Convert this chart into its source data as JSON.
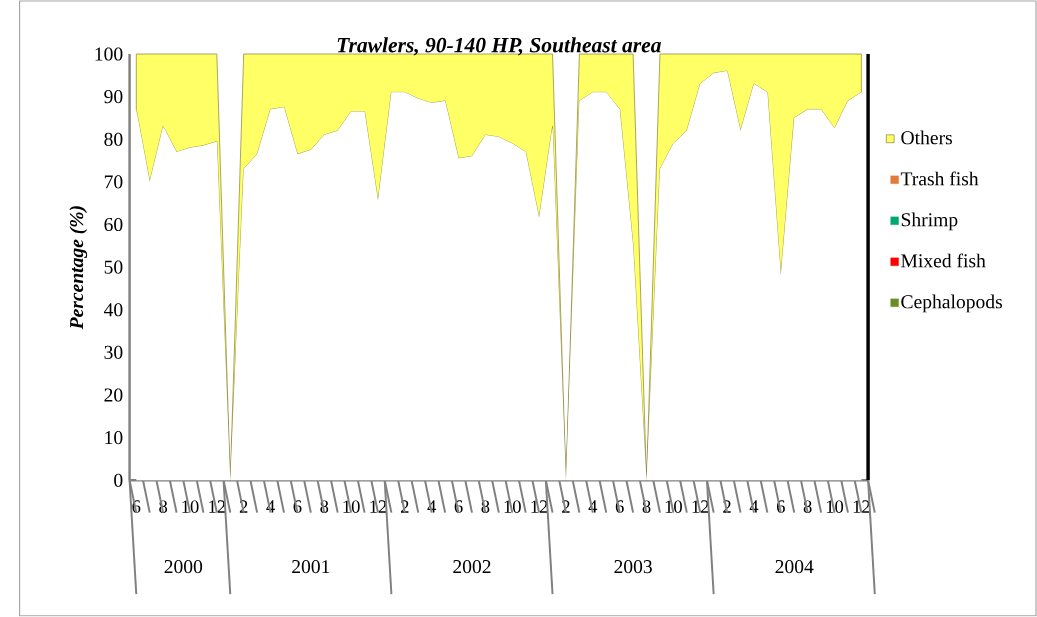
{
  "chart_data": {
    "type": "area",
    "title": "Trawlers, 90-140 HP, Southeast area",
    "ylabel": "Percentage (%)",
    "stacked": true,
    "categories": [
      "6",
      null,
      "8",
      null,
      "10",
      null,
      "12",
      null,
      "2",
      null,
      "4",
      null,
      "6",
      null,
      "8",
      null,
      "10",
      null,
      "12",
      null,
      "2",
      null,
      "4",
      null,
      "6",
      null,
      "8",
      null,
      "10",
      null,
      "12",
      null,
      "2",
      null,
      "4",
      null,
      "6",
      null,
      "8",
      null,
      "10",
      null,
      "12",
      null,
      "2",
      null,
      "4",
      null,
      "6",
      null,
      "8",
      null,
      "10",
      null,
      "12"
    ],
    "series": [
      {
        "name": "Cephalopods",
        "color": "#6b8e23",
        "values": [
          null,
          null,
          null,
          null,
          null,
          null,
          null,
          null,
          null,
          null,
          null,
          null,
          null,
          null,
          null,
          null,
          null,
          null,
          null,
          null,
          null,
          null,
          null,
          null,
          null,
          null,
          null,
          null,
          null,
          null,
          null,
          null,
          null,
          null,
          null,
          null,
          null,
          null,
          null,
          null,
          null,
          null,
          null,
          null,
          null,
          null,
          null,
          null,
          null,
          null,
          null,
          null,
          null,
          null,
          null
        ]
      },
      {
        "name": "Mixed fish",
        "color": "#ff0000",
        "values": [
          null,
          null,
          null,
          null,
          null,
          null,
          null,
          null,
          null,
          null,
          null,
          null,
          null,
          null,
          null,
          null,
          null,
          null,
          null,
          null,
          null,
          null,
          null,
          null,
          null,
          null,
          null,
          null,
          null,
          null,
          null,
          null,
          null,
          null,
          null,
          null,
          null,
          null,
          null,
          null,
          null,
          null,
          null,
          null,
          null,
          null,
          null,
          null,
          null,
          null,
          null,
          null,
          null,
          null,
          null
        ]
      },
      {
        "name": "Shrimp",
        "color": "#00a86b",
        "values": [
          null,
          null,
          null,
          null,
          null,
          null,
          null,
          null,
          null,
          null,
          null,
          null,
          null,
          null,
          null,
          null,
          null,
          null,
          null,
          null,
          null,
          null,
          null,
          null,
          null,
          null,
          null,
          null,
          null,
          null,
          null,
          null,
          null,
          null,
          null,
          null,
          null,
          null,
          null,
          null,
          null,
          null,
          null,
          null,
          null,
          null,
          null,
          null,
          null,
          null,
          null,
          null,
          null,
          null,
          null
        ]
      },
      {
        "name": "Trash fish",
        "color": "#e07b39",
        "values": [
          null,
          null,
          null,
          null,
          null,
          null,
          null,
          null,
          null,
          null,
          null,
          null,
          null,
          null,
          null,
          null,
          null,
          null,
          null,
          null,
          null,
          null,
          null,
          null,
          null,
          null,
          null,
          null,
          null,
          null,
          null,
          null,
          null,
          null,
          null,
          null,
          null,
          null,
          null,
          null,
          null,
          null,
          null,
          null,
          null,
          null,
          null,
          null,
          null,
          null,
          null,
          null,
          null,
          null,
          null
        ]
      },
      {
        "color": "#ffffff",
        "values": [
          87,
          70,
          83,
          77,
          78,
          78.5,
          79.5,
          0,
          73,
          76.5,
          87,
          87.5,
          76.5,
          77.5,
          81,
          82,
          86.5,
          86.5,
          65.5,
          91,
          91,
          89.5,
          88.5,
          89,
          75.5,
          76,
          81,
          80.5,
          79,
          77,
          61.5,
          83,
          0,
          89,
          91,
          91,
          87,
          55,
          0,
          73,
          79,
          82,
          93,
          95.5,
          96,
          82,
          93,
          91,
          48,
          85,
          87,
          87,
          82.5,
          89,
          91
        ]
      },
      {
        "name": "Others",
        "color": "#ffff66",
        "values": [
          13,
          30,
          17,
          23,
          22,
          21.5,
          20.5,
          0,
          27,
          23.5,
          13,
          12.5,
          23.5,
          22.5,
          19,
          18,
          13.5,
          13.5,
          34.5,
          9,
          9,
          10.5,
          11.5,
          11,
          24.5,
          24,
          19,
          19.5,
          21,
          23,
          38.5,
          17,
          0,
          11,
          9,
          9,
          13,
          45,
          0,
          27,
          21,
          18,
          7,
          4.5,
          4,
          18,
          7,
          9,
          52,
          15,
          13,
          13,
          17.5,
          11,
          9
        ]
      }
    ],
    "ylim": [
      0,
      100
    ],
    "yticks": [
      0,
      10,
      20,
      30,
      40,
      50,
      60,
      70,
      80,
      90,
      100
    ],
    "legend": "right",
    "grid": false,
    "marker": "none",
    "annotations": [
      "2000",
      "2001",
      "2002",
      "2003",
      "2004"
    ]
  }
}
